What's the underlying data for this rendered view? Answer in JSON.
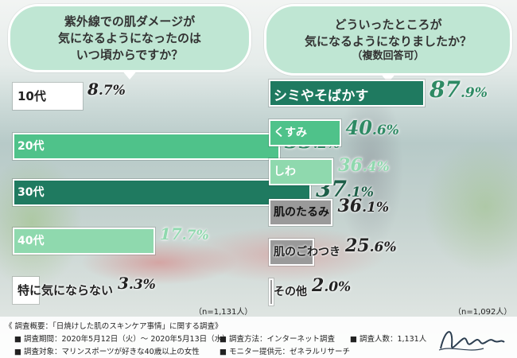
{
  "left_question": {
    "lines": [
      "紫外線での肌ダメージが",
      "気になるようになったのは",
      "いつ頃からですか？"
    ]
  },
  "right_question": {
    "lines": [
      "どういったところが",
      "気になるようになりましたか？"
    ],
    "sub": "（複数回答可）"
  },
  "chart_data": [
    {
      "type": "bar",
      "orientation": "horizontal",
      "categories": [
        "10代",
        "20代",
        "30代",
        "40代",
        "特に気にならない"
      ],
      "values": [
        8.7,
        33.2,
        37.1,
        17.7,
        3.3
      ],
      "value_labels": [
        {
          "int": "8",
          "dec": ".7",
          "unit": "%"
        },
        {
          "int": "33",
          "dec": ".2",
          "unit": "%"
        },
        {
          "int": "37",
          "dec": ".1",
          "unit": "%"
        },
        {
          "int": "17",
          "dec": ".7",
          "unit": "%"
        },
        {
          "int": "3",
          "dec": ".3",
          "unit": "%"
        }
      ],
      "note": "（n=1,131人）"
    },
    {
      "type": "bar",
      "orientation": "horizontal",
      "categories": [
        "シミやそばかす",
        "くすみ",
        "しわ",
        "肌のたるみ",
        "肌のごわつき",
        "その他"
      ],
      "values": [
        87.9,
        40.6,
        36.4,
        36.1,
        25.6,
        2.0
      ],
      "value_labels": [
        {
          "int": "87",
          "dec": ".9",
          "unit": "%"
        },
        {
          "int": "40",
          "dec": ".6",
          "unit": "%"
        },
        {
          "int": "36",
          "dec": ".4",
          "unit": "%"
        },
        {
          "int": "36",
          "dec": ".1",
          "unit": "%"
        },
        {
          "int": "25",
          "dec": ".6",
          "unit": "%"
        },
        {
          "int": "2",
          "dec": ".0",
          "unit": "%"
        }
      ],
      "note": "（n=1,092人）"
    }
  ],
  "footer": {
    "title": "《 調査概要：「日焼けした肌のスキンケア事情」に関する調査》",
    "period": "■ 調査期間：2020年5月12日（火）～ 2020年5月13日（水）",
    "method": "■ 調査方法：インターネット調査",
    "count": "■ 調査人数：1,131人",
    "target": "■ 調査対象：マリンスポーツが好きな40歳以上の女性",
    "provider": "■ モニター提供元：ゼネラルリサーチ"
  },
  "colors": {
    "dark_green": "#1f7a60",
    "mid_green": "#4fc28a",
    "light_green": "#8fd9ae",
    "white_bar": "#ffffff",
    "gray_bar": "#9a9a9a",
    "value_text": "#2e8a64"
  }
}
